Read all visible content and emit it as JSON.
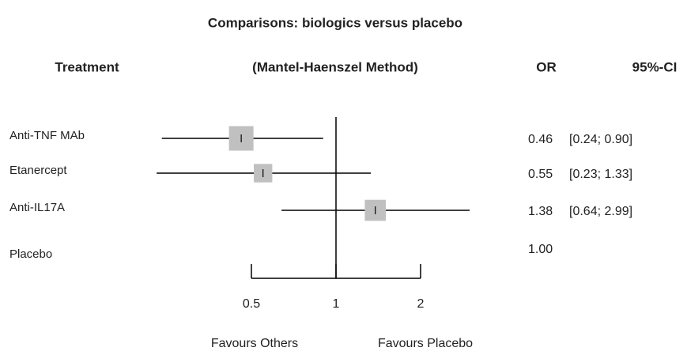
{
  "chart_data": {
    "type": "forest",
    "title": "Comparisons:  biologics versus placebo",
    "headers": [
      "Treatment",
      "(Mantel-Haenszel Method)",
      "OR",
      "95%-CI"
    ],
    "categories": [
      "Anti-TNF MAb",
      "Etanercept",
      "Anti-IL17A",
      "Placebo"
    ],
    "values": [
      0.46,
      0.55,
      1.38,
      1
    ],
    "value_labels": [
      "0.46",
      "0.55",
      "1.38",
      "1.00"
    ],
    "lower": [
      0.24,
      0.23,
      0.64,
      null
    ],
    "upper": [
      0.9,
      1.33,
      2.99,
      null
    ],
    "ci_labels": [
      "[0.24; 0.90]",
      "[0.23; 1.33]",
      "[0.64; 2.99]",
      null
    ],
    "xlim": [
      0.5,
      2
    ],
    "xticks": [
      0.5,
      1,
      2
    ],
    "log_x": true,
    "reference": 1,
    "color": "#c0c0c0",
    "annotations": [
      "Favours Others",
      "Favours Placebo"
    ]
  }
}
